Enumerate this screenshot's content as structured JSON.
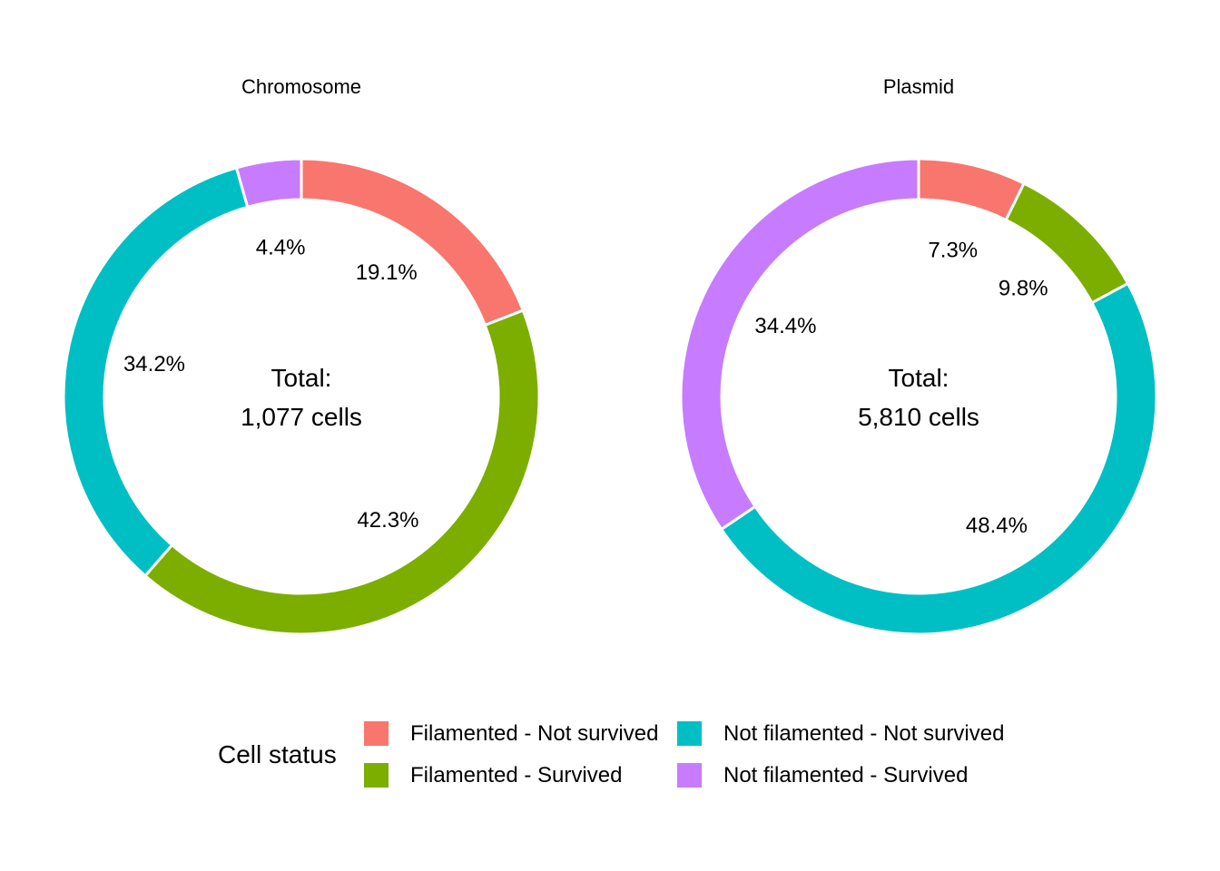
{
  "chart_data": [
    {
      "type": "pie",
      "title": "Chromosome",
      "center_label": [
        "Total:",
        "1,077 cells"
      ],
      "series": [
        {
          "name": "Filamented - Not survived",
          "value": 19.1,
          "label": "19.1%"
        },
        {
          "name": "Filamented - Survived",
          "value": 42.3,
          "label": "42.3%"
        },
        {
          "name": "Not filamented - Not survived",
          "value": 34.2,
          "label": "34.2%"
        },
        {
          "name": "Not filamented - Survived",
          "value": 4.4,
          "label": "4.4%"
        }
      ]
    },
    {
      "type": "pie",
      "title": "Plasmid",
      "center_label": [
        "Total:",
        "5,810 cells"
      ],
      "series": [
        {
          "name": "Filamented - Not survived",
          "value": 7.3,
          "label": "7.3%"
        },
        {
          "name": "Filamented - Survived",
          "value": 9.8,
          "label": "9.8%"
        },
        {
          "name": "Not filamented - Not survived",
          "value": 48.4,
          "label": "48.4%"
        },
        {
          "name": "Not filamented - Survived",
          "value": 34.4,
          "label": "34.4%"
        }
      ]
    }
  ],
  "legend": {
    "title": "Cell status",
    "placement": "bottom",
    "items": [
      {
        "label": "Filamented - Not survived",
        "color": "#F8766D"
      },
      {
        "label": "Filamented - Survived",
        "color": "#7CAE00"
      },
      {
        "label": "Not filamented - Not survived",
        "color": "#00BFC4"
      },
      {
        "label": "Not filamented - Survived",
        "color": "#C77CFF"
      }
    ]
  }
}
